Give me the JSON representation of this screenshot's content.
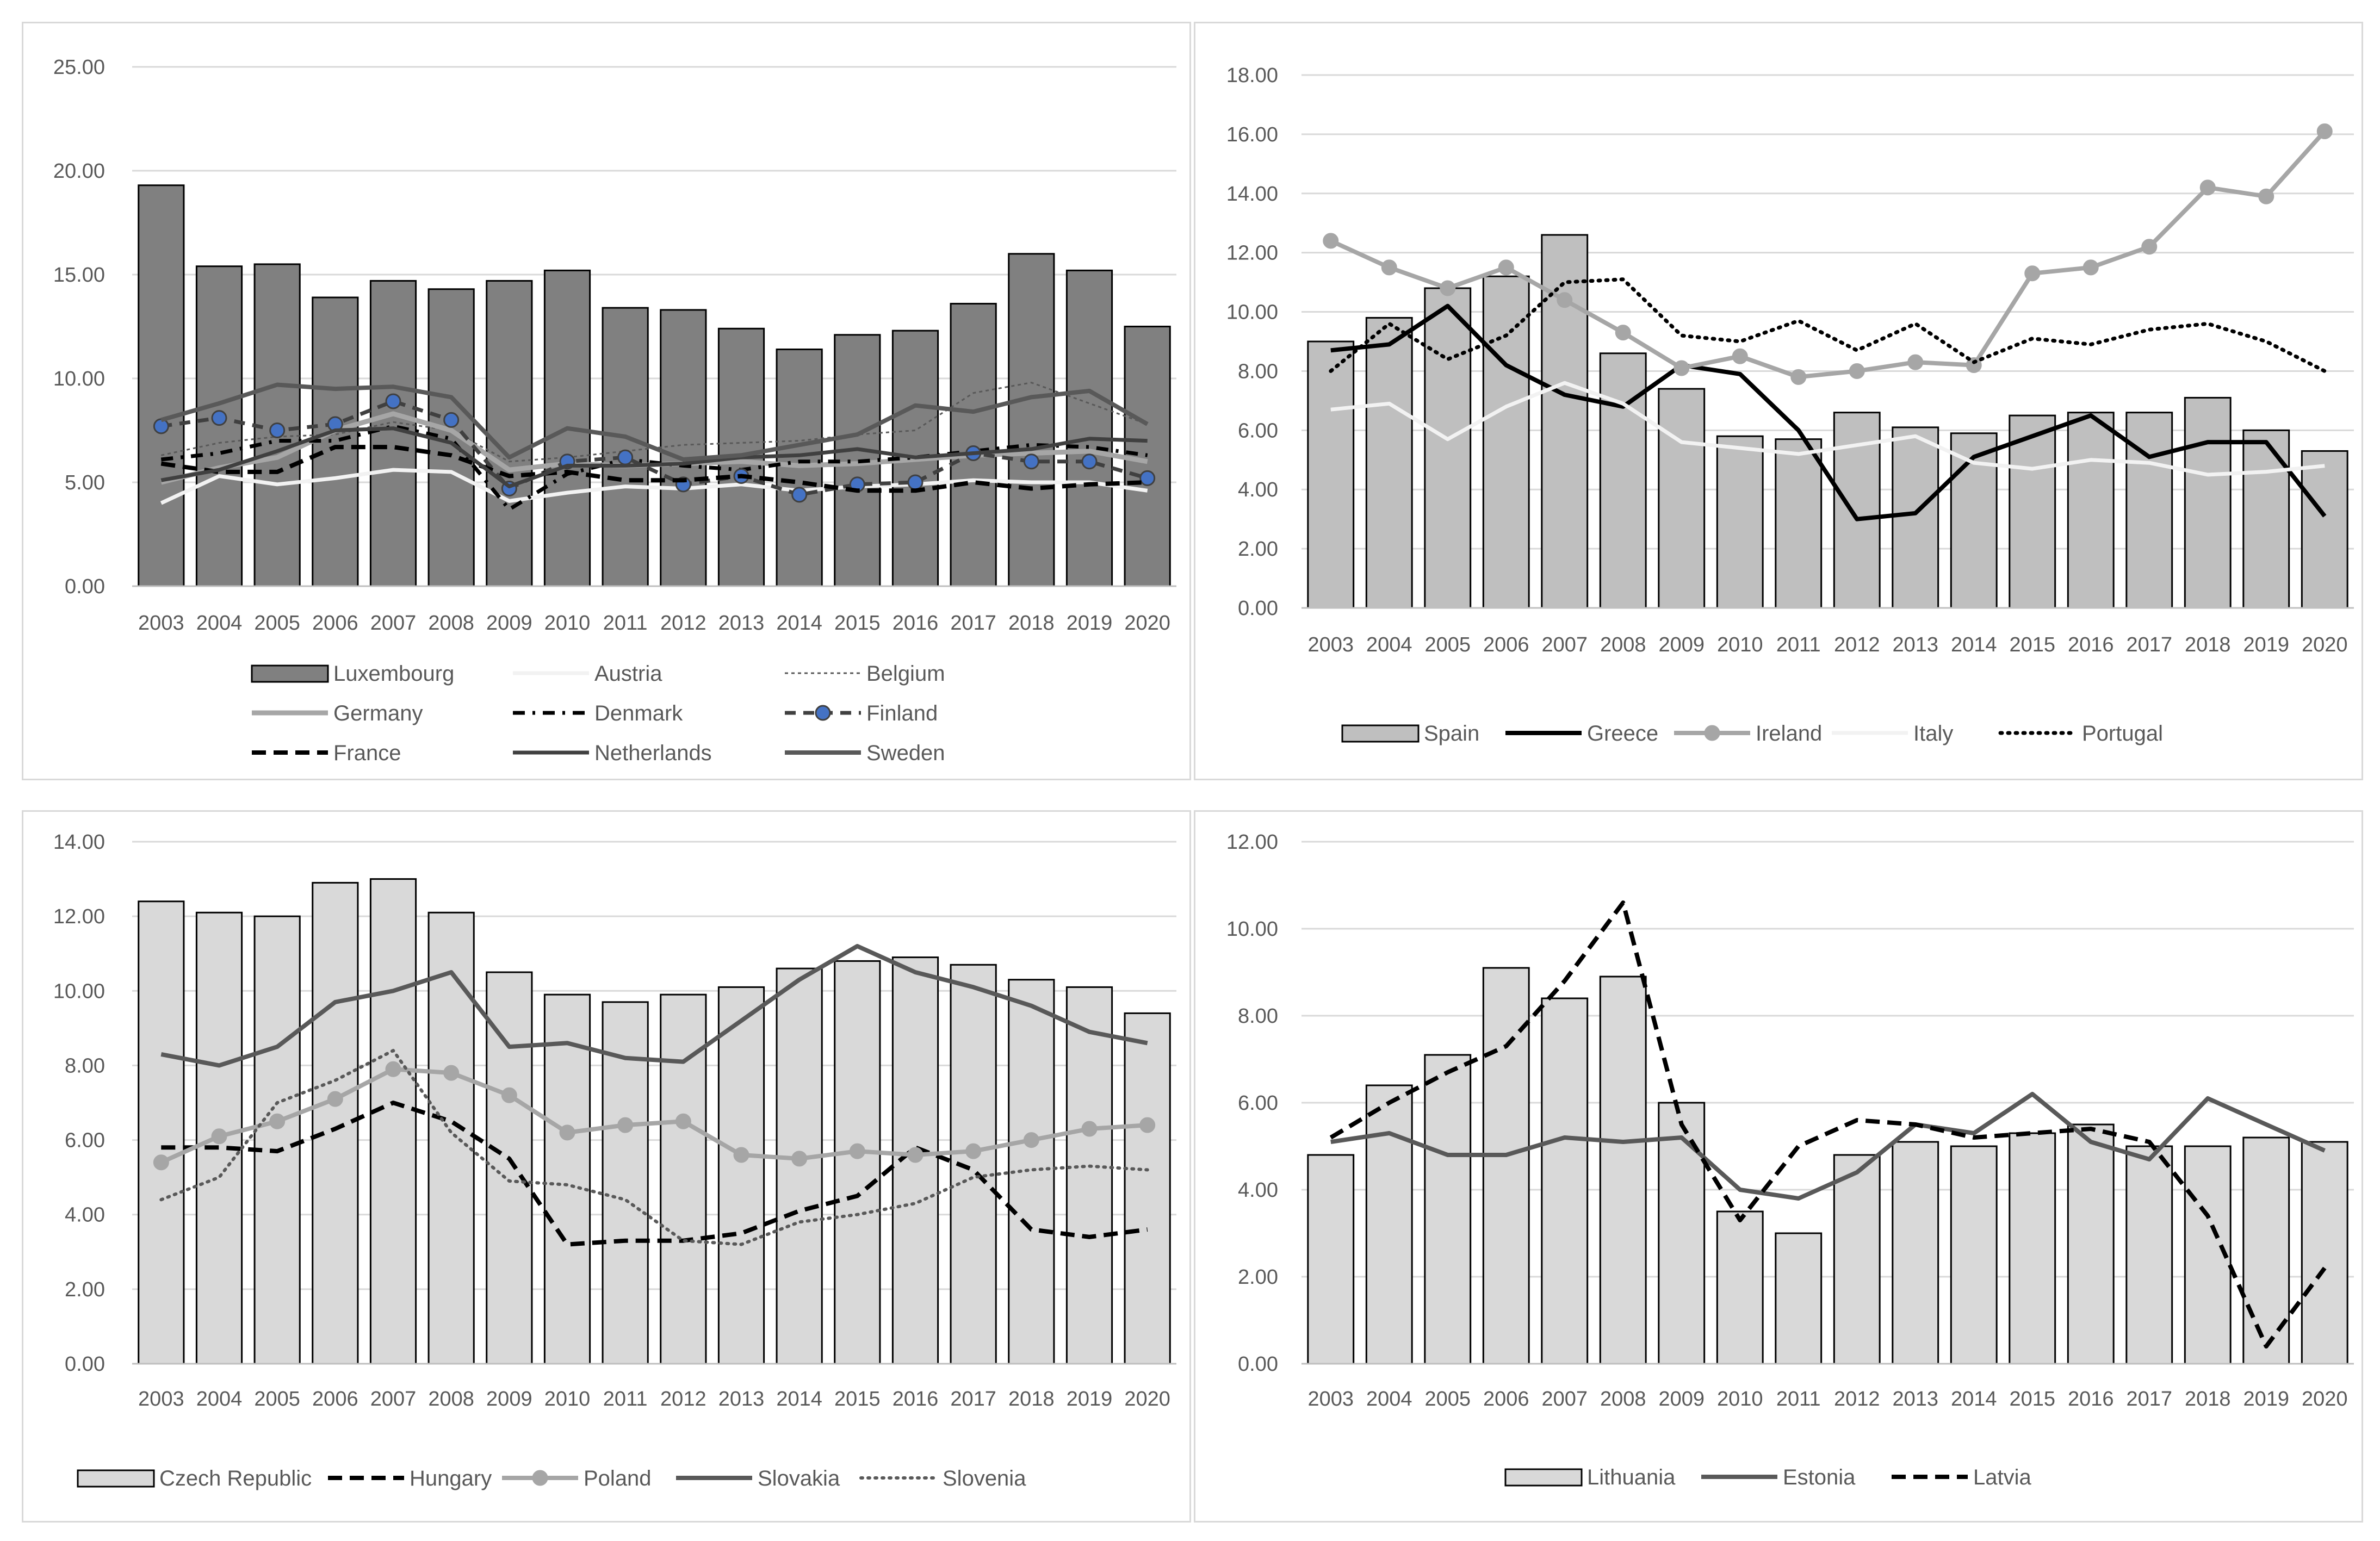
{
  "colors": {
    "grid": "#d9d9d9",
    "axis_text": "#595959",
    "bar_dark": "#808080",
    "bar_light": "#bfbfbf",
    "bar_lighter": "#d9d9d9",
    "line_black": "#000000",
    "line_dark": "#404040",
    "line_mid": "#595959",
    "line_gray": "#a6a6a6",
    "line_white": "#f2f2f2",
    "marker_blue": "#4472c4"
  },
  "chart_data": [
    {
      "type": "bar",
      "title": "",
      "xlabel": "",
      "ylabel": "",
      "ylim": [
        0,
        25
      ],
      "yticks": [
        "0.00",
        "5.00",
        "10.00",
        "15.00",
        "20.00",
        "25.00"
      ],
      "categories": [
        "2003",
        "2004",
        "2005",
        "2006",
        "2007",
        "2008",
        "2009",
        "2010",
        "2011",
        "2012",
        "2013",
        "2014",
        "2015",
        "2016",
        "2017",
        "2018",
        "2019",
        "2020"
      ],
      "legend_position": "bottom",
      "series": [
        {
          "name": "Luxembourg",
          "kind": "bar",
          "style": "bar-dark",
          "values": [
            19.3,
            15.4,
            15.5,
            13.9,
            14.7,
            14.3,
            14.7,
            15.2,
            13.4,
            13.3,
            12.4,
            11.4,
            12.1,
            12.3,
            13.6,
            16.0,
            15.2,
            12.5
          ]
        },
        {
          "name": "Austria",
          "kind": "line",
          "style": "white",
          "values": [
            4.0,
            5.3,
            4.9,
            5.2,
            5.6,
            5.5,
            4.1,
            4.5,
            4.8,
            4.7,
            4.9,
            4.6,
            4.8,
            4.9,
            5.1,
            5.0,
            5.0,
            4.6
          ]
        },
        {
          "name": "Belgium",
          "kind": "line",
          "style": "dotted-dark",
          "values": [
            6.3,
            6.9,
            7.2,
            7.3,
            7.9,
            7.5,
            6.0,
            6.2,
            6.5,
            6.8,
            6.9,
            7.0,
            7.3,
            7.5,
            9.3,
            9.8,
            8.8,
            7.8
          ]
        },
        {
          "name": "Germany",
          "kind": "line",
          "style": "gray-thick",
          "values": [
            5.0,
            5.7,
            6.2,
            7.5,
            8.3,
            7.5,
            5.6,
            5.9,
            5.8,
            5.9,
            6.0,
            5.8,
            5.9,
            6.1,
            6.3,
            6.4,
            6.5,
            6.0
          ]
        },
        {
          "name": "Denmark",
          "kind": "line",
          "style": "dashdot",
          "values": [
            6.1,
            6.4,
            7.0,
            7.0,
            7.7,
            7.1,
            3.7,
            5.4,
            6.1,
            5.8,
            5.6,
            6.0,
            6.0,
            6.2,
            6.5,
            6.8,
            6.7,
            6.3
          ]
        },
        {
          "name": "Finland",
          "kind": "line",
          "style": "dash-marker",
          "values": [
            7.7,
            8.1,
            7.5,
            7.8,
            8.9,
            8.0,
            4.7,
            6.0,
            6.2,
            4.9,
            5.3,
            4.4,
            4.9,
            5.0,
            6.4,
            6.0,
            6.0,
            5.2
          ]
        },
        {
          "name": "France",
          "kind": "line",
          "style": "dash-black",
          "values": [
            5.9,
            5.5,
            5.5,
            6.7,
            6.7,
            6.3,
            5.3,
            5.5,
            5.1,
            5.1,
            5.3,
            5.0,
            4.6,
            4.6,
            5.0,
            4.7,
            4.9,
            5.0
          ]
        },
        {
          "name": "Netherlands",
          "kind": "line",
          "style": "solid-dark",
          "values": [
            5.1,
            5.6,
            6.5,
            7.5,
            7.6,
            6.9,
            4.8,
            5.8,
            5.8,
            5.9,
            6.2,
            6.3,
            6.6,
            6.2,
            6.4,
            6.6,
            7.1,
            7.0
          ]
        },
        {
          "name": "Sweden",
          "kind": "line",
          "style": "solid-mid",
          "values": [
            8.0,
            8.8,
            9.7,
            9.5,
            9.6,
            9.1,
            6.2,
            7.6,
            7.2,
            6.1,
            6.3,
            6.8,
            7.3,
            8.7,
            8.4,
            9.1,
            9.4,
            7.8
          ]
        }
      ],
      "legend_rows": [
        [
          "Luxembourg",
          "Austria",
          "Belgium"
        ],
        [
          "Germany",
          "Denmark",
          "Finland"
        ],
        [
          "France",
          "Netherlands",
          "Sweden"
        ]
      ]
    },
    {
      "type": "bar",
      "title": "",
      "xlabel": "",
      "ylabel": "",
      "ylim": [
        0,
        18
      ],
      "yticks": [
        "0.00",
        "2.00",
        "4.00",
        "6.00",
        "8.00",
        "10.00",
        "12.00",
        "14.00",
        "16.00",
        "18.00"
      ],
      "categories": [
        "2003",
        "2004",
        "2005",
        "2006",
        "2007",
        "2008",
        "2009",
        "2010",
        "2011",
        "2012",
        "2013",
        "2014",
        "2015",
        "2016",
        "2017",
        "2018",
        "2019",
        "2020"
      ],
      "legend_position": "bottom",
      "series": [
        {
          "name": "Spain",
          "kind": "bar",
          "style": "bar-light",
          "values": [
            9.0,
            9.8,
            10.8,
            11.2,
            12.6,
            8.6,
            7.4,
            5.8,
            5.7,
            6.6,
            6.1,
            5.9,
            6.5,
            6.6,
            6.6,
            7.1,
            6.0,
            5.3
          ]
        },
        {
          "name": "Greece",
          "kind": "line",
          "style": "solid-black",
          "values": [
            8.7,
            8.9,
            10.2,
            8.2,
            7.2,
            6.8,
            8.2,
            7.9,
            6.0,
            3.0,
            3.2,
            5.1,
            5.8,
            6.5,
            5.1,
            5.6,
            5.6,
            3.1
          ]
        },
        {
          "name": "Ireland",
          "kind": "line",
          "style": "gray-marker",
          "values": [
            12.4,
            11.5,
            10.8,
            11.5,
            10.4,
            9.3,
            8.1,
            8.5,
            7.8,
            8.0,
            8.3,
            8.2,
            11.3,
            11.5,
            12.2,
            14.2,
            13.9,
            16.1
          ]
        },
        {
          "name": "Italy",
          "kind": "line",
          "style": "white",
          "values": [
            6.7,
            6.9,
            5.7,
            6.8,
            7.6,
            6.9,
            5.6,
            5.4,
            5.2,
            5.5,
            5.8,
            4.9,
            4.7,
            5.0,
            4.9,
            4.5,
            4.6,
            4.8
          ]
        },
        {
          "name": "Portugal",
          "kind": "line",
          "style": "dotted-black",
          "values": [
            8.0,
            9.6,
            8.4,
            9.2,
            11.0,
            11.1,
            9.2,
            9.0,
            9.7,
            8.7,
            9.6,
            8.3,
            9.1,
            8.9,
            9.4,
            9.6,
            9.0,
            8.0
          ]
        }
      ],
      "legend_rows": [
        [
          "Spain",
          "Greece",
          "Ireland",
          "Italy",
          "Portugal"
        ]
      ]
    },
    {
      "type": "bar",
      "title": "",
      "xlabel": "",
      "ylabel": "",
      "ylim": [
        0,
        14
      ],
      "yticks": [
        "0.00",
        "2.00",
        "4.00",
        "6.00",
        "8.00",
        "10.00",
        "12.00",
        "14.00"
      ],
      "categories": [
        "2003",
        "2004",
        "2005",
        "2006",
        "2007",
        "2008",
        "2009",
        "2010",
        "2011",
        "2012",
        "2013",
        "2014",
        "2015",
        "2016",
        "2017",
        "2018",
        "2019",
        "2020"
      ],
      "legend_position": "bottom",
      "series": [
        {
          "name": "Czech Republic",
          "kind": "bar",
          "style": "bar-lighter",
          "values": [
            12.4,
            12.1,
            12.0,
            12.9,
            13.0,
            12.1,
            10.5,
            9.9,
            9.7,
            9.9,
            10.1,
            10.6,
            10.8,
            10.9,
            10.7,
            10.3,
            10.1,
            9.4
          ]
        },
        {
          "name": "Hungary",
          "kind": "line",
          "style": "dash-black",
          "values": [
            5.8,
            5.8,
            5.7,
            6.3,
            7.0,
            6.5,
            5.5,
            3.2,
            3.3,
            3.3,
            3.5,
            4.1,
            4.5,
            5.8,
            5.2,
            3.6,
            3.4,
            3.6
          ]
        },
        {
          "name": "Poland",
          "kind": "line",
          "style": "gray-marker",
          "values": [
            5.4,
            6.1,
            6.5,
            7.1,
            7.9,
            7.8,
            7.2,
            6.2,
            6.4,
            6.5,
            5.6,
            5.5,
            5.7,
            5.6,
            5.7,
            6.0,
            6.3,
            6.4
          ]
        },
        {
          "name": "Slovakia",
          "kind": "line",
          "style": "solid-mid",
          "values": [
            8.3,
            8.0,
            8.5,
            9.7,
            10.0,
            10.5,
            8.5,
            8.6,
            8.2,
            8.1,
            9.2,
            10.3,
            11.2,
            10.5,
            10.1,
            9.6,
            8.9,
            8.6
          ]
        },
        {
          "name": "Slovenia",
          "kind": "line",
          "style": "dotted-mid",
          "values": [
            4.4,
            5.0,
            7.0,
            7.6,
            8.4,
            6.2,
            4.9,
            4.8,
            4.4,
            3.3,
            3.2,
            3.8,
            4.0,
            4.3,
            5.0,
            5.2,
            5.3,
            5.2
          ]
        }
      ],
      "legend_rows": [
        [
          "Czech Republic",
          "Hungary",
          "Poland",
          "Slovakia",
          "Slovenia"
        ]
      ]
    },
    {
      "type": "bar",
      "title": "",
      "xlabel": "",
      "ylabel": "",
      "ylim": [
        0,
        12
      ],
      "yticks": [
        "0.00",
        "2.00",
        "4.00",
        "6.00",
        "8.00",
        "10.00",
        "12.00"
      ],
      "categories": [
        "2003",
        "2004",
        "2005",
        "2006",
        "2007",
        "2008",
        "2009",
        "2010",
        "2011",
        "2012",
        "2013",
        "2014",
        "2015",
        "2016",
        "2017",
        "2018",
        "2019",
        "2020"
      ],
      "legend_position": "bottom",
      "series": [
        {
          "name": "Lithuania",
          "kind": "bar",
          "style": "bar-lighter",
          "values": [
            4.8,
            6.4,
            7.1,
            9.1,
            8.4,
            8.9,
            6.0,
            3.5,
            3.0,
            4.8,
            5.1,
            5.0,
            5.3,
            5.5,
            5.0,
            5.0,
            5.2,
            5.1
          ]
        },
        {
          "name": "Estonia",
          "kind": "line",
          "style": "solid-mid",
          "values": [
            5.1,
            5.3,
            4.8,
            4.8,
            5.2,
            5.1,
            5.2,
            4.0,
            3.8,
            4.4,
            5.5,
            5.3,
            6.2,
            5.1,
            4.7,
            6.1,
            5.5,
            4.9
          ]
        },
        {
          "name": "Latvia",
          "kind": "line",
          "style": "dash-black",
          "values": [
            5.2,
            6.0,
            6.7,
            7.3,
            8.8,
            10.6,
            5.5,
            3.3,
            5.0,
            5.6,
            5.5,
            5.2,
            5.3,
            5.4,
            5.1,
            3.4,
            0.4,
            2.2
          ]
        }
      ],
      "legend_rows": [
        [
          "Lithuania",
          "Estonia",
          "Latvia"
        ]
      ]
    }
  ]
}
